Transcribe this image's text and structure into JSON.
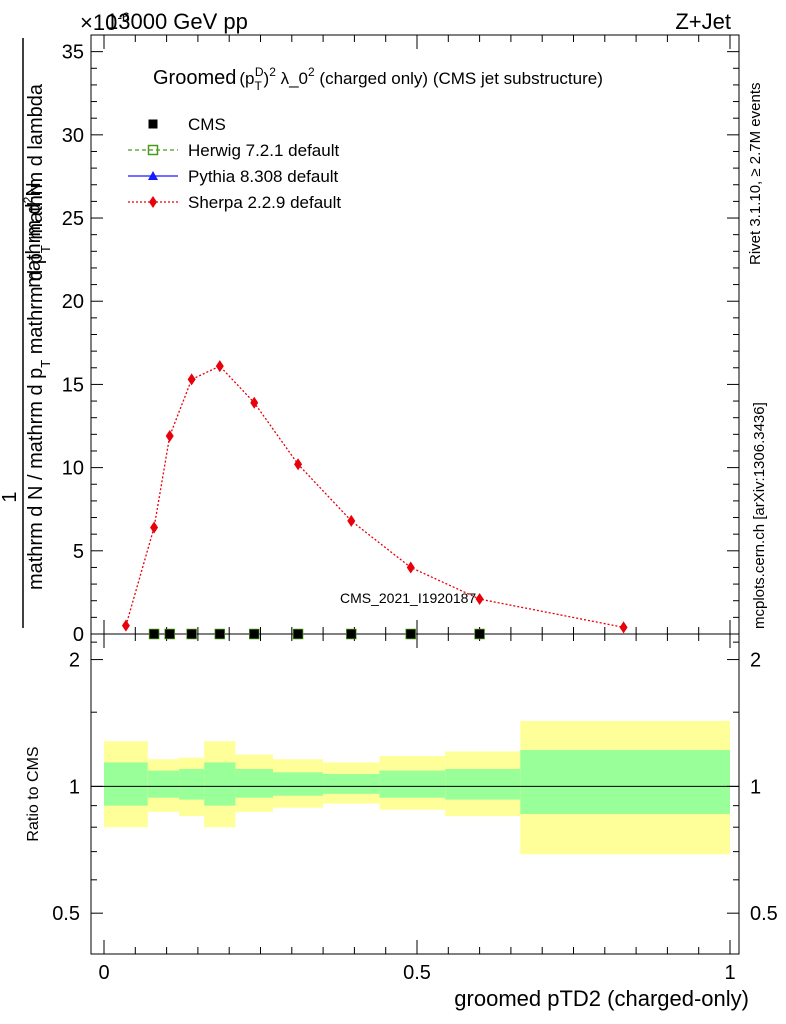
{
  "header": {
    "energy_label": "13000 GeV pp",
    "process_label": "Z+Jet",
    "exponent_label": "×10",
    "exponent_power": "-6"
  },
  "side_labels": {
    "rivet": "Rivet 3.1.10, ≥ 2.7M events",
    "mcplots": "mcplots.cern.ch [arXiv:1306.3436]"
  },
  "main_plot": {
    "title_prefix": "Groomed",
    "title_p": "(p",
    "title_T": "T",
    "title_D": "D",
    "title_close": ")",
    "title_sq": "2",
    "title_lambda": " λ_0",
    "title_rest": "  (charged only) (CMS jet substructure)",
    "ylabel_num_top": "1",
    "ylabel_num_main": "mathrm d",
    "ylabel_num_sup": "2",
    "ylabel_num_end": "N",
    "ylabel_den_main": "mathrm d N / mathrm d p",
    "ylabel_den_sub": "T",
    "ylabel_den_mid": " mathrm d p",
    "ylabel_den_sub2": "T",
    "ylabel_den_end": " mathrm d lambda",
    "watermark": "CMS_2021_I1920187",
    "y_ticks": [
      "0",
      "5",
      "10",
      "15",
      "20",
      "25",
      "30",
      "35"
    ]
  },
  "ratio_plot": {
    "ylabel": "Ratio to CMS",
    "y_ticks": [
      "0.5",
      "1",
      "2"
    ],
    "x_ticks": [
      "0",
      "0.5",
      "1"
    ],
    "xlabel": "groomed pTD2 (charged-only)"
  },
  "legend": [
    {
      "label": "CMS",
      "color": "#000000",
      "marker": "square-filled"
    },
    {
      "label": "Herwig 7.2.1 default",
      "color": "#4a9a1a",
      "marker": "square-open"
    },
    {
      "label": "Pythia 8.308 default",
      "color": "#1a1aff",
      "marker": "triangle"
    },
    {
      "label": "Sherpa 2.2.9 default",
      "color": "#e8000a",
      "marker": "diamond"
    }
  ],
  "chart_data": {
    "type": "line",
    "title": "Groomed (p_T^D)^2 λ_0^2 (charged only) (CMS jet substructure)",
    "xlabel": "groomed pTD2 (charged-only)",
    "xlim": [
      0,
      1
    ],
    "main_ylim": [
      0,
      36000000
    ],
    "y_scale_factor": 1000000,
    "series": [
      {
        "name": "CMS",
        "x": [
          0.08,
          0.105,
          0.14,
          0.185,
          0.24,
          0.31,
          0.395,
          0.49,
          0.6
        ],
        "y": [
          0,
          0,
          0,
          0,
          0,
          0,
          0,
          0,
          0
        ]
      },
      {
        "name": "Herwig 7.2.1 default",
        "x": [
          0.08,
          0.105,
          0.14,
          0.185,
          0.24,
          0.31,
          0.395,
          0.49,
          0.6
        ],
        "y": [
          0,
          0,
          0,
          0,
          0,
          0,
          0,
          0,
          0
        ]
      },
      {
        "name": "Pythia 8.308 default",
        "x": [
          0.08,
          0.105,
          0.14,
          0.185,
          0.24,
          0.31,
          0.395,
          0.49,
          0.6
        ],
        "y": [
          0,
          0,
          0,
          0,
          0,
          0,
          0,
          0,
          0
        ]
      },
      {
        "name": "Sherpa 2.2.9 default",
        "x": [
          0.035,
          0.08,
          0.105,
          0.14,
          0.185,
          0.24,
          0.31,
          0.395,
          0.49,
          0.6,
          0.83
        ],
        "y": [
          0.5,
          6.4,
          11.9,
          15.3,
          16.1,
          13.9,
          10.2,
          6.8,
          4.0,
          2.1,
          0.4
        ]
      }
    ],
    "ratio": {
      "ylabel": "Ratio to CMS",
      "log_scale": true,
      "ylim": [
        0.4,
        2.3
      ],
      "bins": [
        {
          "x0": 0.0,
          "x1": 0.07,
          "y_lo": 0.8,
          "y_hi": 1.28,
          "g_lo": 0.9,
          "g_hi": 1.14
        },
        {
          "x0": 0.07,
          "x1": 0.12,
          "y_lo": 0.87,
          "y_hi": 1.16,
          "g_lo": 0.94,
          "g_hi": 1.09
        },
        {
          "x0": 0.12,
          "x1": 0.16,
          "y_lo": 0.85,
          "y_hi": 1.17,
          "g_lo": 0.93,
          "g_hi": 1.1
        },
        {
          "x0": 0.16,
          "x1": 0.21,
          "y_lo": 0.8,
          "y_hi": 1.28,
          "g_lo": 0.9,
          "g_hi": 1.14
        },
        {
          "x0": 0.21,
          "x1": 0.27,
          "y_lo": 0.87,
          "y_hi": 1.19,
          "g_lo": 0.94,
          "g_hi": 1.1
        },
        {
          "x0": 0.27,
          "x1": 0.35,
          "y_lo": 0.89,
          "y_hi": 1.16,
          "g_lo": 0.95,
          "g_hi": 1.08
        },
        {
          "x0": 0.35,
          "x1": 0.44,
          "y_lo": 0.91,
          "y_hi": 1.14,
          "g_lo": 0.96,
          "g_hi": 1.07
        },
        {
          "x0": 0.44,
          "x1": 0.545,
          "y_lo": 0.88,
          "y_hi": 1.18,
          "g_lo": 0.94,
          "g_hi": 1.09
        },
        {
          "x0": 0.545,
          "x1": 0.665,
          "y_lo": 0.85,
          "y_hi": 1.21,
          "g_lo": 0.93,
          "g_hi": 1.1
        },
        {
          "x0": 0.665,
          "x1": 1.0,
          "y_lo": 0.69,
          "y_hi": 1.43,
          "g_lo": 0.86,
          "g_hi": 1.22
        }
      ]
    }
  }
}
